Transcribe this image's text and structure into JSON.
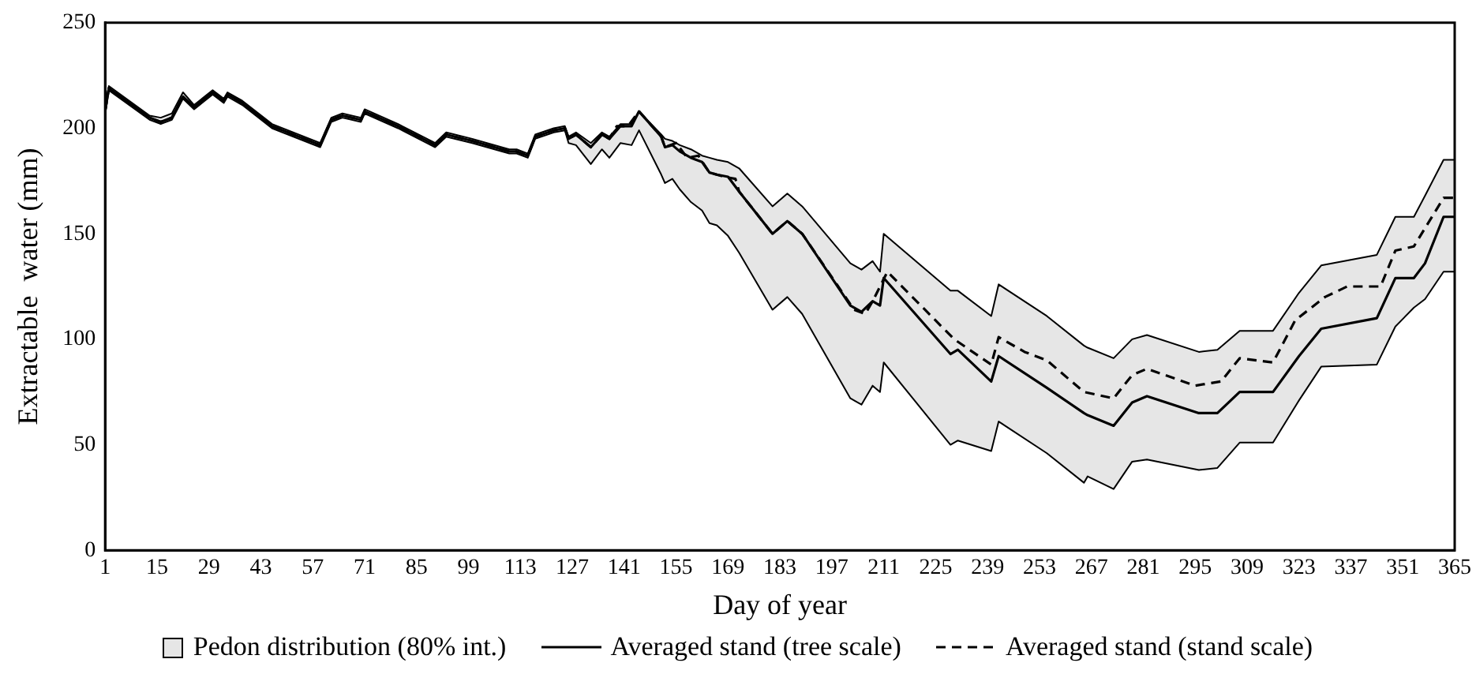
{
  "chart_data": {
    "type": "line",
    "xlabel": "Day of year",
    "ylabel": "Extractable  water (mm)",
    "xlim": [
      1,
      365
    ],
    "xticks": [
      1,
      15,
      29,
      43,
      57,
      71,
      85,
      99,
      113,
      127,
      141,
      155,
      169,
      183,
      197,
      211,
      225,
      239,
      253,
      267,
      281,
      295,
      309,
      323,
      337,
      351,
      365
    ],
    "ylim": [
      0,
      250
    ],
    "yticks": [
      0,
      50,
      100,
      150,
      200,
      250
    ],
    "grid": false,
    "legend": "bottom",
    "annotations": [
      "Pedon distribution (80% int.)"
    ],
    "series": [
      {
        "type": "line",
        "name": "Averaged stand (tree scale)",
        "color": "#000000",
        "line_style": "solid",
        "x": [
          1,
          2,
          13,
          16,
          19,
          22,
          25,
          30,
          33,
          34,
          38,
          46,
          59,
          62,
          65,
          70,
          71,
          80,
          90,
          93,
          100,
          110,
          112,
          115,
          117,
          122,
          125,
          126,
          128,
          132,
          135,
          137,
          140,
          143,
          145,
          151,
          152,
          154,
          156,
          159,
          162,
          164,
          166,
          169,
          172,
          181,
          185,
          189,
          202,
          205,
          208,
          210,
          211,
          229,
          231,
          240,
          242,
          255,
          265,
          266,
          273,
          278,
          282,
          296,
          301,
          307,
          316,
          323,
          329,
          344,
          349,
          354,
          357,
          362,
          365
        ],
        "values": [
          208,
          219,
          205,
          203,
          205,
          215,
          210,
          217,
          213,
          216,
          212,
          201,
          192,
          204,
          206,
          204,
          208,
          201,
          192,
          197,
          194,
          189,
          189,
          187,
          196,
          199,
          200,
          195,
          197,
          191,
          197,
          195,
          201,
          201,
          208,
          196,
          191,
          192,
          189,
          186,
          184,
          179,
          178,
          177,
          170,
          150,
          156,
          150,
          116,
          113,
          118,
          116,
          129,
          93,
          95,
          80,
          92,
          77,
          65,
          64,
          59,
          70,
          73,
          65,
          65,
          75,
          75,
          92,
          105,
          110,
          129,
          129,
          136,
          158,
          158
        ],
        "upper": [
          209,
          220,
          206,
          205,
          207,
          217,
          211,
          218,
          214,
          217,
          213,
          202,
          193,
          205,
          207,
          205,
          209,
          202,
          193,
          198,
          195,
          190,
          190,
          188,
          197,
          200,
          201,
          196,
          198,
          193,
          198,
          196,
          202,
          202,
          208,
          197,
          195,
          194,
          192,
          190,
          187,
          186,
          185,
          184,
          181,
          163,
          169,
          163,
          136,
          133,
          137,
          132,
          150,
          123,
          123,
          111,
          126,
          111,
          97,
          96,
          91,
          100,
          102,
          94,
          95,
          104,
          104,
          122,
          135,
          140,
          158,
          158,
          168,
          185,
          185
        ],
        "lower": [
          207,
          218,
          204,
          202,
          204,
          214,
          209,
          216,
          212,
          215,
          211,
          200,
          191,
          203,
          205,
          203,
          207,
          200,
          191,
          196,
          193,
          188,
          188,
          186,
          195,
          198,
          199,
          193,
          192,
          183,
          190,
          186,
          193,
          192,
          199,
          178,
          174,
          176,
          171,
          165,
          161,
          155,
          154,
          149,
          141,
          114,
          120,
          112,
          72,
          69,
          78,
          75,
          89,
          50,
          52,
          47,
          61,
          46,
          32,
          35,
          29,
          42,
          43,
          38,
          39,
          51,
          51,
          71,
          87,
          88,
          106,
          115,
          119,
          132,
          132
        ]
      },
      {
        "type": "line",
        "name": "Averaged stand (stand scale)",
        "color": "#000000",
        "line_style": "dashed",
        "x": [
          1,
          2,
          13,
          16,
          19,
          22,
          25,
          30,
          33,
          34,
          38,
          46,
          59,
          62,
          65,
          70,
          71,
          80,
          90,
          93,
          100,
          110,
          112,
          115,
          117,
          122,
          125,
          126,
          128,
          132,
          135,
          137,
          139,
          142,
          145,
          151,
          152,
          155,
          158,
          161,
          164,
          168,
          171,
          172,
          181,
          185,
          189,
          203,
          206,
          208,
          212,
          230,
          240,
          242,
          249,
          255,
          265,
          273,
          278,
          282,
          295,
          302,
          307,
          316,
          322,
          330,
          336,
          345,
          349,
          354,
          362,
          365
        ],
        "values": [
          208,
          219,
          205,
          203,
          205,
          215,
          210,
          217,
          213,
          216,
          212,
          201,
          192,
          204,
          206,
          204,
          208,
          201,
          192,
          197,
          194,
          189,
          189,
          187,
          196,
          199,
          200,
          195,
          197,
          191,
          197,
          195,
          201,
          201,
          208,
          196,
          191,
          193,
          186,
          187,
          179,
          177,
          176,
          170,
          150,
          156,
          150,
          114,
          112,
          118,
          132,
          100,
          88,
          101,
          94,
          90,
          75,
          72,
          83,
          86,
          78,
          80,
          91,
          89,
          109,
          120,
          125,
          125,
          142,
          144,
          167,
          167
        ]
      }
    ]
  }
}
